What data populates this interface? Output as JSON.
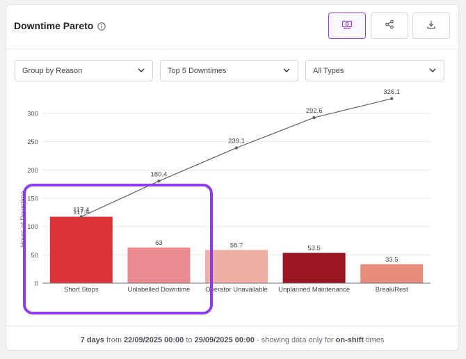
{
  "header": {
    "title": "Downtime Pareto",
    "buttons": [
      {
        "icon": "money-icon",
        "active": true
      },
      {
        "icon": "share-icon",
        "active": false
      },
      {
        "icon": "download-icon",
        "active": false
      }
    ]
  },
  "filters": {
    "group_by": "Group by Reason",
    "top_n": "Top 5 Downtimes",
    "types": "All Types"
  },
  "chart_data": {
    "type": "bar",
    "categories": [
      "Short Stops",
      "Unlabelled Downtime",
      "Operator Unavailable",
      "Unplanned Maintenance",
      "Break/Rest"
    ],
    "values": [
      117.4,
      63,
      58.7,
      53.5,
      33.5
    ],
    "bar_labels": [
      "117.4",
      "63",
      "58.7",
      "53.5",
      "33.5"
    ],
    "bar_colors": [
      "#dc343b",
      "#ec8b92",
      "#eeb0a2",
      "#9b1522",
      "#e68d7d"
    ],
    "cumulative": {
      "type": "line",
      "values": [
        117.4,
        180.4,
        239.1,
        292.6,
        326.1
      ],
      "labels": [
        "117.4",
        "180.4",
        "239.1",
        "292.6",
        "326.1"
      ],
      "color": "#606266"
    },
    "ylabel": "Hours of Downtime",
    "ylim": [
      0,
      300
    ],
    "yticks": [
      0,
      50,
      100,
      150,
      200,
      250,
      300
    ],
    "grid": true
  },
  "footer": {
    "days": "7 days",
    "from_word": "from",
    "start": "22/09/2025 00:00",
    "to_word": "to",
    "end": "29/09/2025 00:00",
    "middle": "- showing data only for",
    "shift": "on-shift",
    "tail": "times"
  },
  "colors": {
    "accent": "#8b3fd9",
    "highlight": "#8e3be8"
  }
}
